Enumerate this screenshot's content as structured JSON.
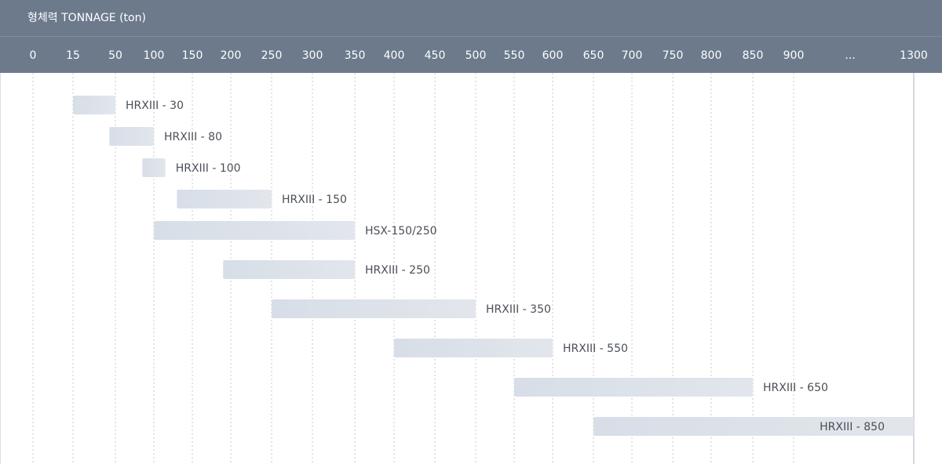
{
  "header": {
    "title": "형체력 TONNAGE (ton)"
  },
  "colors": {
    "header_bg": "#6c7a8c",
    "bar_fill_start": "#d7dee7",
    "bar_fill_end": "#e2e6ec",
    "grid_line": "#c8c8c8",
    "label_text": "#4a4f57"
  },
  "chart_data": {
    "type": "bar",
    "orientation": "horizontal-range",
    "title": "형체력 TONNAGE (ton)",
    "xlabel": "TONNAGE (ton)",
    "ylabel": "",
    "x_ticks": [
      "0",
      "15",
      "50",
      "100",
      "150",
      "200",
      "250",
      "300",
      "350",
      "400",
      "450",
      "500",
      "550",
      "600",
      "650",
      "700",
      "750",
      "800",
      "850",
      "900",
      "...",
      "1300"
    ],
    "grid": true,
    "series": [
      {
        "name": "HRXIII - 30",
        "start": 15,
        "end": 50
      },
      {
        "name": "HRXIII - 80",
        "start": 45,
        "end": 100
      },
      {
        "name": "HRXIII - 100",
        "start": 85,
        "end": 115
      },
      {
        "name": "HRXIII - 150",
        "start": 130,
        "end": 250
      },
      {
        "name": "HSX-150/250",
        "start": 100,
        "end": 350
      },
      {
        "name": "HRXIII - 250",
        "start": 190,
        "end": 350
      },
      {
        "name": "HRXIII - 350",
        "start": 250,
        "end": 500
      },
      {
        "name": "HRXIII - 550",
        "start": 400,
        "end": 600
      },
      {
        "name": "HRXIII - 650",
        "start": 550,
        "end": 850
      },
      {
        "name": "HRXIII - 850",
        "start": 650,
        "end": 1300
      }
    ]
  }
}
